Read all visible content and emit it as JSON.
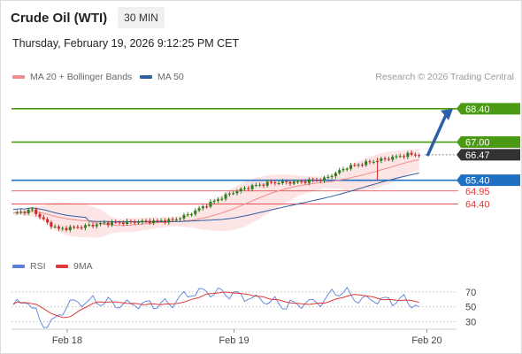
{
  "header": {
    "title": "Crude Oil (WTI)",
    "timeframe": "30 MIN",
    "datetime": "Thursday, February 19, 2026 9:12:25 PM CET"
  },
  "legend": {
    "items": [
      {
        "label": "MA 20 + Bollinger Bands",
        "color": "#f28b8b"
      },
      {
        "label": "MA 50",
        "color": "#2f5f9e"
      }
    ],
    "credit": "Research © 2026 Trading Central"
  },
  "chart_data": [
    {
      "type": "candlestick",
      "title": "",
      "x_tick_labels": [
        "Feb 18",
        "Feb 19",
        "Feb 20"
      ],
      "x_tick_positions": [
        15,
        60,
        112
      ],
      "x_range": [
        0,
        120
      ],
      "y_range": [
        62.9,
        68.95
      ],
      "levels": [
        {
          "value": 68.4,
          "label": "68.40",
          "role": "resistance",
          "color": "#4a9a14"
        },
        {
          "value": 67.0,
          "label": "67.00",
          "role": "resistance",
          "color": "#4a9a14"
        },
        {
          "value": 66.47,
          "label": "66.47",
          "role": "last",
          "color": "#333333"
        },
        {
          "value": 65.4,
          "label": "65.40",
          "role": "pivot",
          "color": "#1f6fc2"
        },
        {
          "value": 64.95,
          "label": "64.95",
          "role": "support",
          "color": "#e03a3a"
        },
        {
          "value": 64.4,
          "label": "64.40",
          "role": "support",
          "color": "#e03a3a"
        }
      ],
      "forecast_arrow": {
        "from": 66.47,
        "to": 68.4
      },
      "colors": {
        "up": "#2e7d1f",
        "down": "#cc2a2a",
        "band": "#fde0e0",
        "ma20": "#f28b8b",
        "ma50": "#2f5f9e",
        "arrow": "#2b60a8"
      }
    },
    {
      "type": "line",
      "title": "",
      "legend": [
        {
          "label": "RSI",
          "color": "#5b7fd8"
        },
        {
          "label": "9MA",
          "color": "#e03a3a"
        }
      ],
      "y_tick_labels": [
        "70",
        "50",
        "30"
      ],
      "y_ticks": [
        70,
        50,
        30
      ],
      "y_range": [
        15,
        95
      ]
    }
  ]
}
